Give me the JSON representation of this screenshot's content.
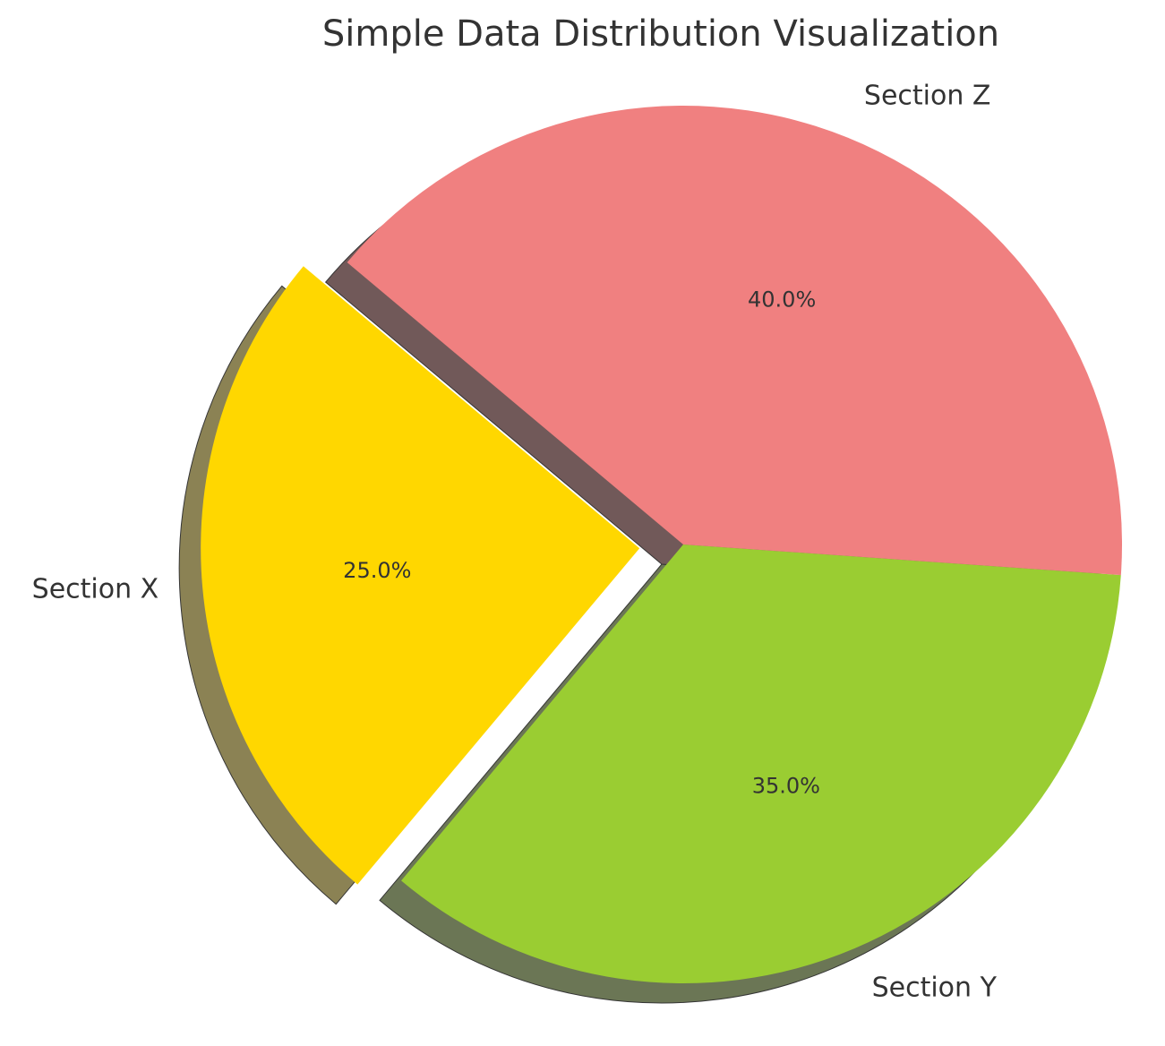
{
  "chart_data": {
    "type": "pie",
    "title": "Simple Data Distribution Visualization",
    "categories": [
      "Section X",
      "Section Y",
      "Section Z"
    ],
    "values": [
      25,
      35,
      40
    ],
    "value_labels": [
      "25.0%",
      "35.0%",
      "40.0%"
    ],
    "colors": [
      "#ffd700",
      "#9acd32",
      "#f08080"
    ],
    "startangle": 140,
    "explode": [
      0.1,
      0,
      0
    ],
    "shadow": true
  }
}
